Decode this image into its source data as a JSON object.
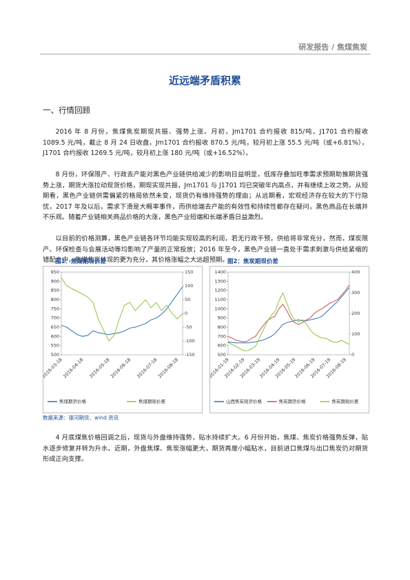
{
  "header": {
    "title": "研发报告 / 焦煤焦炭"
  },
  "title": "近远端矛盾积累",
  "section": "一、行情回顾",
  "paragraphs": [
    "2016 年 8 月份，焦煤焦炭期现共振、强势上涨。月初，Jm1701 合约报收 815/吨，J1701 合约报收 1089.5 元/吨，截止 8 月 24 日收盘，Jm1701 合约报收 870.5 元/吨，较月初上涨 55.5 元/吨（或+6.81%），J1701 合约报收 1269.5 元/吨，较月初上涨 180 元/吨（或+16.52%）。",
    "8 月份，环保限产、行政去产能对黑色产业链供给减少的影响日益明显，低库存叠加旺季需求预期助推期货强势上涨，期货大涨拉动现货价格，期现实现共振，Jm1701 与 J1701 均已突破年内高点，并有继续上攻之势。从短期看，黑色产业链供需偏紧的格局依然未变，现货仍有维持强势的理由；从远期看，宏观经济存在较大的下行隐忧，2017 年及以后，需求下滑是大概率事件，而供给端去产能的有效性和持续性都存在疑问，黑色商品在长端并不乐观。随着产业链相关商品价格的大涨，黑色产业短端和长端矛盾日益激烈。",
    "以目前的价格测算，黑色产业链各环节均能实现较高的利润，若无行政干预，供给将非常充分，然而，煤炭限产、环保检查与会展活动等均影响了产量的正常投放；2016 年至今，黑色产业链一直处于需求刺激与供给紧缩的错配之中，焦煤焦炭体现的更为充分，其价格涨幅之大远超预期。",
    "4 月底煤焦价格回调之后，现货与外盘维持强势，贴水持续扩大。6 月份开始，焦煤、焦炭价格强势反弹，贴水逐步修复并转为升水。近期，外盘焦煤、焦炭涨幅更大，期货再度小幅贴水，目前进口焦煤与出口焦炭仍对期货形成正向支撑。"
  ],
  "source": "数据来源：银河期货、wind 资讯",
  "chart_data": [
    {
      "type": "line",
      "title": "图1：焦煤期现价差",
      "categories": [
        "2016-03-18",
        null,
        null,
        null,
        "2016-04-18",
        null,
        null,
        null,
        null,
        "2016-05-18",
        null,
        null,
        null,
        "2016-06-18",
        null,
        null,
        null,
        null,
        "2016-07-18",
        null,
        null,
        null,
        "2016-08-18",
        null
      ],
      "ylim": [
        500,
        950
      ],
      "yticks": [
        500,
        550,
        600,
        650,
        700,
        750,
        800,
        850,
        900,
        950
      ],
      "y2lim": [
        -150,
        150
      ],
      "y2ticks": [
        -150,
        -100,
        -50,
        0,
        50,
        100,
        150
      ],
      "series": [
        {
          "name": "焦煤期货价格",
          "color": "#2e6db4",
          "values": [
            660,
            650,
            630,
            610,
            600,
            605,
            630,
            620,
            615,
            610,
            615,
            620,
            630,
            645,
            650,
            660,
            670,
            690,
            700,
            720,
            750,
            790,
            830,
            870
          ]
        },
        {
          "name": "焦煤期现价差",
          "color": "#8fc33a",
          "axis": "y2",
          "values": [
            130,
            100,
            90,
            80,
            70,
            60,
            40,
            -20,
            -60,
            -100,
            -80,
            -20,
            30,
            40,
            10,
            30,
            50,
            20,
            40,
            10,
            30,
            0,
            -20,
            0
          ]
        }
      ]
    },
    {
      "type": "line",
      "title": "图2：焦炭期现价差",
      "categories": [
        "2016-01-19",
        null,
        null,
        null,
        "2016-02-19",
        null,
        null,
        null,
        "2016-03-19",
        null,
        null,
        null,
        null,
        "2016-04-19",
        null,
        null,
        null,
        "2016-05-19",
        null,
        null,
        null,
        null,
        "2016-06-19",
        null,
        null,
        null,
        "2016-07-19",
        null,
        null,
        null,
        "2016-08-19",
        null
      ],
      "ylim": [
        500,
        1400
      ],
      "yticks": [
        500,
        600,
        700,
        800,
        900,
        1000,
        1100,
        1200,
        1300,
        1400
      ],
      "y2lim": [
        0,
        400
      ],
      "y2ticks": [
        0,
        100,
        200,
        300,
        400
      ],
      "series": [
        {
          "name": "山西焦炭现货价格",
          "color": "#2e6db4",
          "values": [
            640,
            635,
            630,
            630,
            630,
            630,
            635,
            640,
            650,
            660,
            680,
            700,
            730,
            780,
            830,
            850,
            860,
            870,
            880,
            870,
            870,
            880,
            890,
            900,
            920,
            960,
            1000,
            1040,
            1080,
            1130,
            1180,
            1230
          ]
        },
        {
          "name": "焦炭期货价格",
          "color": "#c0504d",
          "values": [
            700,
            680,
            660,
            650,
            640,
            650,
            680,
            700,
            760,
            820,
            870,
            900,
            920,
            1000,
            1050,
            980,
            900,
            850,
            830,
            850,
            880,
            900,
            950,
            980,
            1000,
            1030,
            1060,
            1080,
            1100,
            1150,
            1200,
            1260
          ]
        },
        {
          "name": "焦炭期现价差",
          "color": "#8fc33a",
          "axis": "y2",
          "values": [
            60,
            50,
            40,
            30,
            20,
            20,
            30,
            40,
            80,
            120,
            160,
            190,
            210,
            260,
            300,
            250,
            200,
            170,
            160,
            170,
            150,
            120,
            100,
            90,
            80,
            80,
            70,
            60,
            60,
            70,
            60,
            50
          ]
        }
      ]
    }
  ]
}
